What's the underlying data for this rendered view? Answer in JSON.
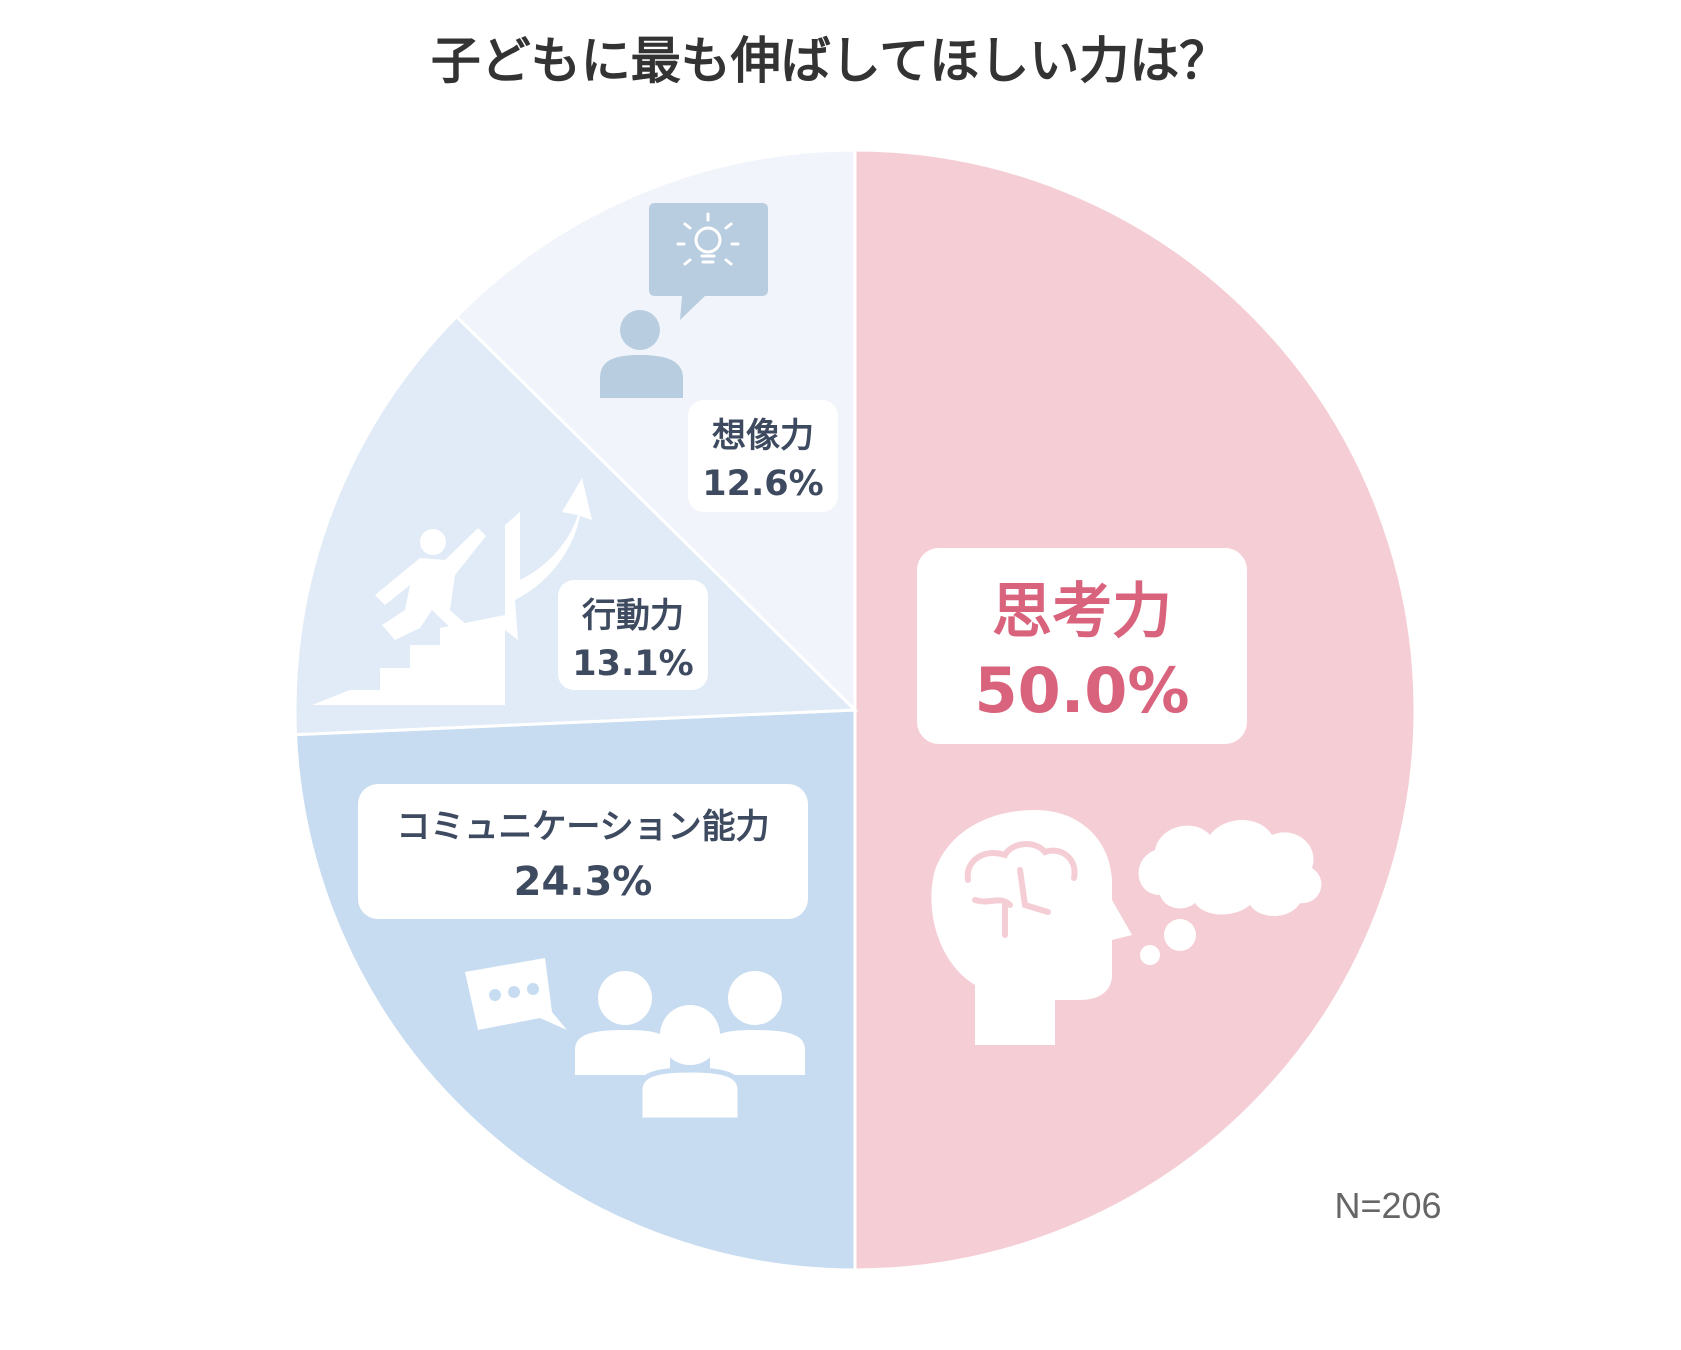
{
  "title": "子どもに最も伸ばしてほしい力は？",
  "note": "N=206",
  "chart_data": {
    "type": "pie",
    "title": "子どもに最も伸ばしてほしい力は？",
    "start": "12 o'clock, clockwise",
    "slices": [
      {
        "label": "思考力",
        "value": 50.0,
        "value_label": "50.0%",
        "color": "#f5ced5",
        "icon": "brain-head-thought-icon"
      },
      {
        "label": "コミュニケーション能力",
        "value": 24.3,
        "value_label": "24.3%",
        "color": "#c7dcf0",
        "icon": "group-chat-icon"
      },
      {
        "label": "行動力",
        "value": 13.1,
        "value_label": "13.1%",
        "color": "#e0ebf7",
        "icon": "climbing-stairs-arrow-icon"
      },
      {
        "label": "想像力",
        "value": 12.6,
        "value_label": "12.6%",
        "color": "#f1f5fb",
        "icon": "person-idea-icon"
      }
    ],
    "note": "N=206"
  }
}
